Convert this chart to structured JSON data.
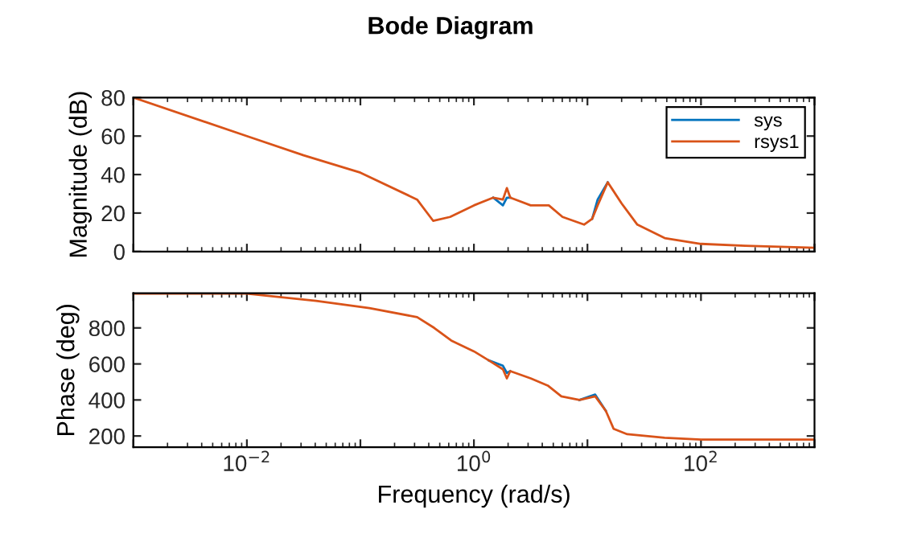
{
  "chart_data": [
    {
      "type": "line",
      "title": "Bode Diagram",
      "ylabel": "Magnitude (dB)",
      "log": "x",
      "xlim": [
        0.001,
        1000
      ],
      "xticks": [
        {
          "value": 0.001,
          "label": null
        },
        {
          "value": 0.01,
          "label": null
        },
        {
          "value": 0.1,
          "label": null
        },
        {
          "value": 1,
          "label": null
        },
        {
          "value": 10,
          "label": null
        },
        {
          "value": 100,
          "label": null
        },
        {
          "value": 1000,
          "label": null
        }
      ],
      "ylim": [
        0,
        80
      ],
      "yticks": [
        0,
        20,
        40,
        60,
        80
      ],
      "tick_labels": "y",
      "legend": "top right",
      "series": [
        {
          "name": "sys",
          "color": "#0072bd",
          "x": [
            1.48,
            1.8,
            1.95,
            2.09,
            4.57,
            11,
            12.3,
            15.1
          ],
          "values": [
            28,
            24,
            28,
            28,
            null,
            17,
            27,
            36
          ]
        },
        {
          "name": "rsys1",
          "color": "#d95319",
          "x": [
            0.001,
            0.01,
            0.0316,
            0.1,
            0.316,
            0.437,
            0.617,
            1,
            1.48,
            1.8,
            1.95,
            2.09,
            3.16,
            4.57,
            6.03,
            9.33,
            11,
            12.3,
            15.1,
            20,
            27.5,
            47.9,
            100,
            245,
            1000
          ],
          "values": [
            80,
            60,
            50,
            41,
            27,
            16,
            18,
            24,
            28,
            27,
            33,
            28,
            24,
            24,
            18,
            14,
            17,
            24,
            36,
            25,
            14,
            7,
            4,
            3,
            2
          ]
        }
      ]
    },
    {
      "type": "line",
      "xlabel": "Frequency (rad/s)",
      "ylabel": "Phase (deg)",
      "log": "x",
      "xlim": [
        0.001,
        1000
      ],
      "xticks": [
        {
          "value": 0.001,
          "label": null
        },
        {
          "value": 0.01,
          "label": "10$^{−2}$"
        },
        {
          "value": 0.1,
          "label": null
        },
        {
          "value": 1,
          "label": "10$^{0}$"
        },
        {
          "value": 10,
          "label": null
        },
        {
          "value": 100,
          "label": "10$^{2}$"
        },
        {
          "value": 1000,
          "label": null
        }
      ],
      "ylim": [
        138,
        993
      ],
      "yticks": [
        200,
        400,
        600,
        800
      ],
      "series": [
        {
          "color": "#0072bd",
          "x": [
            1.35,
            1.8,
            1.95,
            2.09,
            4.47,
            8.51,
            11.7,
            14.5
          ],
          "values": [
            620,
            590,
            550,
            560,
            null,
            400,
            430,
            340
          ]
        },
        {
          "color": "#d95319",
          "x": [
            0.001,
            0.01,
            0.0407,
            0.12,
            0.316,
            0.447,
            0.631,
            1,
            1.35,
            1.8,
            1.95,
            2.09,
            3.16,
            4.47,
            5.89,
            8.51,
            11.7,
            14.5,
            17,
            22.4,
            47.9,
            100,
            1000
          ],
          "values": [
            990,
            990,
            950,
            910,
            860,
            800,
            730,
            670,
            620,
            570,
            520,
            560,
            520,
            480,
            420,
            400,
            420,
            340,
            240,
            210,
            190,
            180,
            180
          ]
        }
      ]
    }
  ]
}
